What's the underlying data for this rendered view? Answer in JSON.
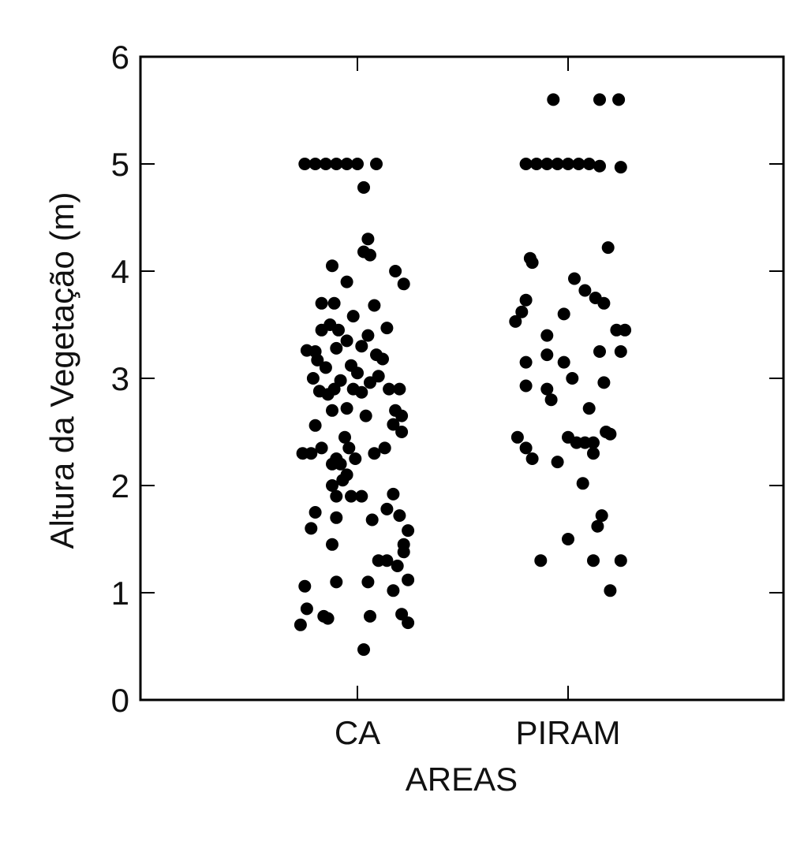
{
  "chart_data": {
    "type": "scatter",
    "subtype": "jittered dot plot (strip plot)",
    "xlabel": "AREAS",
    "ylabel": "Altura da Vegetação (m)",
    "categories": [
      "CA",
      "PIRAM"
    ],
    "ylim": [
      0,
      6
    ],
    "yticks": [
      "0",
      "1",
      "2",
      "3",
      "4",
      "5",
      "6"
    ],
    "grid": false,
    "legend": "none",
    "marker_color": "#000000",
    "series": [
      {
        "category": "CA",
        "points": [
          {
            "x": -0.25,
            "y": 5.0
          },
          {
            "x": -0.2,
            "y": 5.0
          },
          {
            "x": -0.15,
            "y": 5.0
          },
          {
            "x": -0.1,
            "y": 5.0
          },
          {
            "x": -0.05,
            "y": 5.0
          },
          {
            "x": 0.0,
            "y": 5.0
          },
          {
            "x": 0.09,
            "y": 5.0
          },
          {
            "x": 0.03,
            "y": 4.78
          },
          {
            "x": 0.05,
            "y": 4.3
          },
          {
            "x": 0.03,
            "y": 4.18
          },
          {
            "x": 0.06,
            "y": 4.15
          },
          {
            "x": -0.12,
            "y": 4.05
          },
          {
            "x": 0.18,
            "y": 4.0
          },
          {
            "x": -0.05,
            "y": 3.9
          },
          {
            "x": 0.22,
            "y": 3.88
          },
          {
            "x": -0.17,
            "y": 3.7
          },
          {
            "x": -0.11,
            "y": 3.7
          },
          {
            "x": 0.08,
            "y": 3.68
          },
          {
            "x": -0.02,
            "y": 3.58
          },
          {
            "x": -0.13,
            "y": 3.5
          },
          {
            "x": -0.09,
            "y": 3.45
          },
          {
            "x": -0.17,
            "y": 3.45
          },
          {
            "x": 0.14,
            "y": 3.47
          },
          {
            "x": -0.05,
            "y": 3.35
          },
          {
            "x": 0.05,
            "y": 3.4
          },
          {
            "x": -0.24,
            "y": 3.26
          },
          {
            "x": -0.2,
            "y": 3.25
          },
          {
            "x": -0.1,
            "y": 3.28
          },
          {
            "x": 0.02,
            "y": 3.3
          },
          {
            "x": 0.09,
            "y": 3.22
          },
          {
            "x": 0.12,
            "y": 3.18
          },
          {
            "x": -0.19,
            "y": 3.17
          },
          {
            "x": -0.15,
            "y": 3.1
          },
          {
            "x": -0.03,
            "y": 3.12
          },
          {
            "x": 0.0,
            "y": 3.05
          },
          {
            "x": -0.21,
            "y": 3.0
          },
          {
            "x": 0.1,
            "y": 3.02
          },
          {
            "x": -0.08,
            "y": 2.98
          },
          {
            "x": 0.06,
            "y": 2.96
          },
          {
            "x": -0.18,
            "y": 2.88
          },
          {
            "x": -0.14,
            "y": 2.85
          },
          {
            "x": -0.11,
            "y": 2.9
          },
          {
            "x": -0.02,
            "y": 2.9
          },
          {
            "x": 0.02,
            "y": 2.87
          },
          {
            "x": 0.15,
            "y": 2.9
          },
          {
            "x": 0.2,
            "y": 2.9
          },
          {
            "x": -0.12,
            "y": 2.7
          },
          {
            "x": -0.05,
            "y": 2.72
          },
          {
            "x": 0.04,
            "y": 2.65
          },
          {
            "x": 0.18,
            "y": 2.7
          },
          {
            "x": 0.21,
            "y": 2.65
          },
          {
            "x": -0.2,
            "y": 2.56
          },
          {
            "x": 0.17,
            "y": 2.57
          },
          {
            "x": 0.21,
            "y": 2.5
          },
          {
            "x": -0.06,
            "y": 2.45
          },
          {
            "x": -0.26,
            "y": 2.3
          },
          {
            "x": -0.22,
            "y": 2.3
          },
          {
            "x": -0.17,
            "y": 2.35
          },
          {
            "x": -0.04,
            "y": 2.35
          },
          {
            "x": 0.08,
            "y": 2.3
          },
          {
            "x": 0.13,
            "y": 2.35
          },
          {
            "x": -0.1,
            "y": 2.25
          },
          {
            "x": -0.01,
            "y": 2.25
          },
          {
            "x": -0.12,
            "y": 2.2
          },
          {
            "x": -0.08,
            "y": 2.2
          },
          {
            "x": -0.05,
            "y": 2.1
          },
          {
            "x": -0.07,
            "y": 2.05
          },
          {
            "x": -0.12,
            "y": 2.0
          },
          {
            "x": -0.1,
            "y": 1.9
          },
          {
            "x": -0.03,
            "y": 1.9
          },
          {
            "x": 0.02,
            "y": 1.9
          },
          {
            "x": 0.17,
            "y": 1.92
          },
          {
            "x": -0.2,
            "y": 1.75
          },
          {
            "x": -0.1,
            "y": 1.7
          },
          {
            "x": 0.07,
            "y": 1.68
          },
          {
            "x": 0.14,
            "y": 1.78
          },
          {
            "x": 0.2,
            "y": 1.72
          },
          {
            "x": -0.22,
            "y": 1.6
          },
          {
            "x": 0.24,
            "y": 1.58
          },
          {
            "x": -0.12,
            "y": 1.45
          },
          {
            "x": 0.22,
            "y": 1.45
          },
          {
            "x": 0.22,
            "y": 1.38
          },
          {
            "x": 0.1,
            "y": 1.3
          },
          {
            "x": 0.14,
            "y": 1.3
          },
          {
            "x": 0.19,
            "y": 1.25
          },
          {
            "x": 0.24,
            "y": 1.12
          },
          {
            "x": -0.25,
            "y": 1.06
          },
          {
            "x": -0.1,
            "y": 1.1
          },
          {
            "x": 0.05,
            "y": 1.1
          },
          {
            "x": 0.17,
            "y": 1.02
          },
          {
            "x": -0.24,
            "y": 0.85
          },
          {
            "x": -0.16,
            "y": 0.78
          },
          {
            "x": -0.14,
            "y": 0.76
          },
          {
            "x": 0.06,
            "y": 0.78
          },
          {
            "x": 0.21,
            "y": 0.8
          },
          {
            "x": 0.24,
            "y": 0.72
          },
          {
            "x": -0.27,
            "y": 0.7
          },
          {
            "x": 0.03,
            "y": 0.47
          }
        ]
      },
      {
        "category": "PIRAM",
        "points": [
          {
            "x": -0.07,
            "y": 5.6
          },
          {
            "x": 0.15,
            "y": 5.6
          },
          {
            "x": 0.24,
            "y": 5.6
          },
          {
            "x": -0.2,
            "y": 5.0
          },
          {
            "x": -0.15,
            "y": 5.0
          },
          {
            "x": -0.1,
            "y": 5.0
          },
          {
            "x": -0.05,
            "y": 5.0
          },
          {
            "x": 0.0,
            "y": 5.0
          },
          {
            "x": 0.05,
            "y": 5.0
          },
          {
            "x": 0.1,
            "y": 5.0
          },
          {
            "x": 0.15,
            "y": 4.98
          },
          {
            "x": 0.25,
            "y": 4.97
          },
          {
            "x": 0.19,
            "y": 4.22
          },
          {
            "x": -0.18,
            "y": 4.12
          },
          {
            "x": -0.17,
            "y": 4.08
          },
          {
            "x": 0.03,
            "y": 3.93
          },
          {
            "x": 0.08,
            "y": 3.82
          },
          {
            "x": 0.13,
            "y": 3.75
          },
          {
            "x": 0.17,
            "y": 3.7
          },
          {
            "x": -0.2,
            "y": 3.73
          },
          {
            "x": -0.22,
            "y": 3.62
          },
          {
            "x": -0.02,
            "y": 3.6
          },
          {
            "x": -0.25,
            "y": 3.53
          },
          {
            "x": -0.1,
            "y": 3.4
          },
          {
            "x": 0.23,
            "y": 3.45
          },
          {
            "x": 0.27,
            "y": 3.45
          },
          {
            "x": -0.1,
            "y": 3.22
          },
          {
            "x": 0.15,
            "y": 3.25
          },
          {
            "x": 0.25,
            "y": 3.25
          },
          {
            "x": -0.2,
            "y": 3.15
          },
          {
            "x": -0.02,
            "y": 3.15
          },
          {
            "x": 0.02,
            "y": 3.0
          },
          {
            "x": 0.17,
            "y": 2.96
          },
          {
            "x": -0.2,
            "y": 2.93
          },
          {
            "x": -0.1,
            "y": 2.9
          },
          {
            "x": -0.08,
            "y": 2.8
          },
          {
            "x": 0.1,
            "y": 2.72
          },
          {
            "x": 0.18,
            "y": 2.5
          },
          {
            "x": 0.2,
            "y": 2.48
          },
          {
            "x": -0.24,
            "y": 2.45
          },
          {
            "x": 0.0,
            "y": 2.45
          },
          {
            "x": 0.04,
            "y": 2.4
          },
          {
            "x": 0.08,
            "y": 2.4
          },
          {
            "x": 0.12,
            "y": 2.4
          },
          {
            "x": -0.2,
            "y": 2.35
          },
          {
            "x": 0.12,
            "y": 2.3
          },
          {
            "x": -0.17,
            "y": 2.25
          },
          {
            "x": -0.05,
            "y": 2.22
          },
          {
            "x": 0.07,
            "y": 2.02
          },
          {
            "x": 0.16,
            "y": 1.72
          },
          {
            "x": 0.14,
            "y": 1.62
          },
          {
            "x": 0.0,
            "y": 1.5
          },
          {
            "x": -0.13,
            "y": 1.3
          },
          {
            "x": 0.12,
            "y": 1.3
          },
          {
            "x": 0.25,
            "y": 1.3
          },
          {
            "x": 0.2,
            "y": 1.02
          }
        ]
      }
    ]
  }
}
